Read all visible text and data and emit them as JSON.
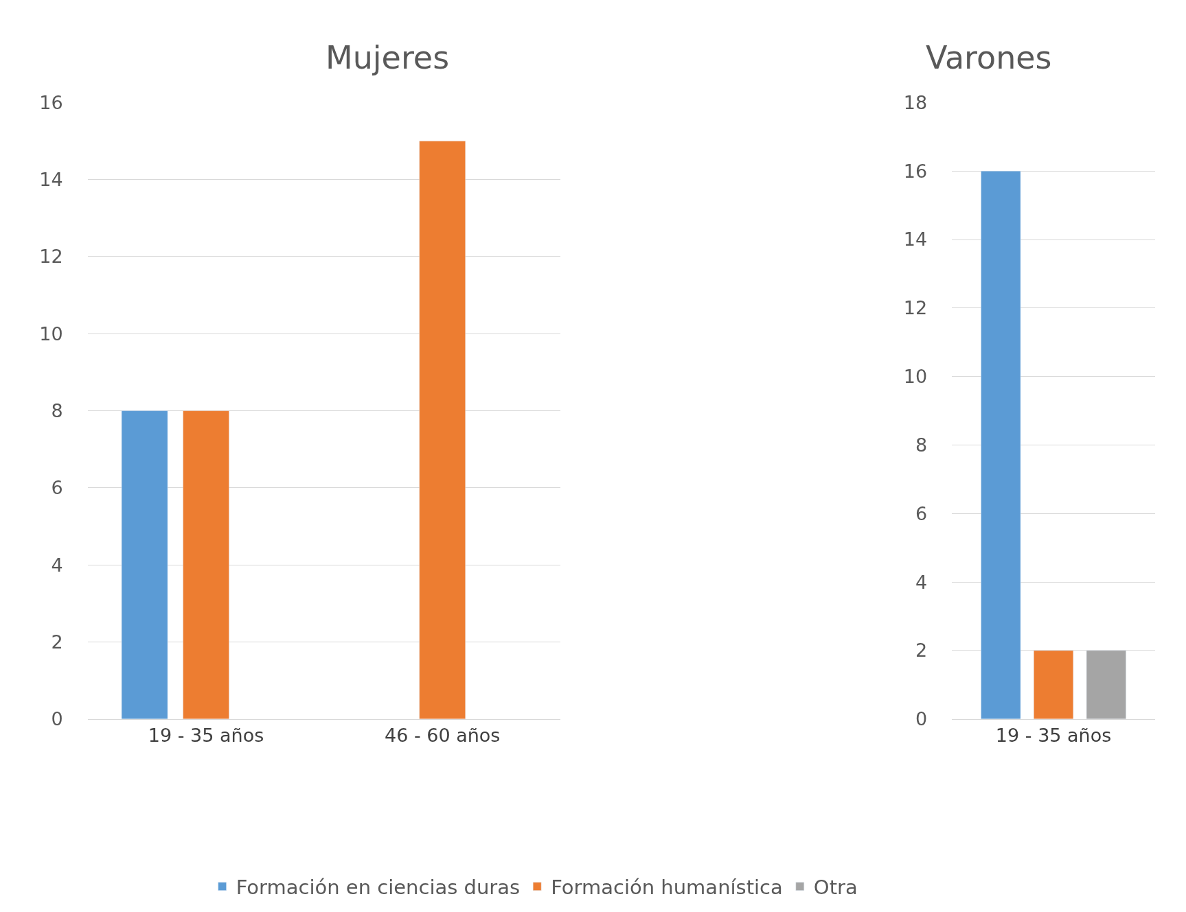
{
  "chart_data": [
    {
      "type": "bar",
      "title": "Mujeres",
      "categories": [
        "19 - 35 años",
        "46 - 60 años"
      ],
      "series": [
        {
          "name": "Formación en ciencias duras",
          "color": "#5b9bd5",
          "values": [
            8,
            null
          ]
        },
        {
          "name": "Formación humanística",
          "color": "#ed7d31",
          "values": [
            8,
            15
          ]
        },
        {
          "name": "Otra",
          "color": "#a5a5a5",
          "values": [
            null,
            null
          ]
        }
      ],
      "ylim": [
        0,
        16
      ],
      "yticks": [
        0,
        2,
        4,
        6,
        8,
        10,
        12,
        14,
        16
      ],
      "grid": "y",
      "legend": "bottom"
    },
    {
      "type": "bar",
      "title": "Varones",
      "categories": [
        "19 - 35 años"
      ],
      "series": [
        {
          "color": "#5b9bd5",
          "values": [
            16
          ]
        },
        {
          "color": "#ed7d31",
          "values": [
            2
          ]
        },
        {
          "color": "#a5a5a5",
          "values": [
            2
          ]
        }
      ],
      "ylim": [
        0,
        18
      ],
      "yticks": [
        0,
        2,
        4,
        6,
        8,
        10,
        12,
        14,
        16,
        18
      ],
      "grid": "y",
      "legend": false
    }
  ]
}
